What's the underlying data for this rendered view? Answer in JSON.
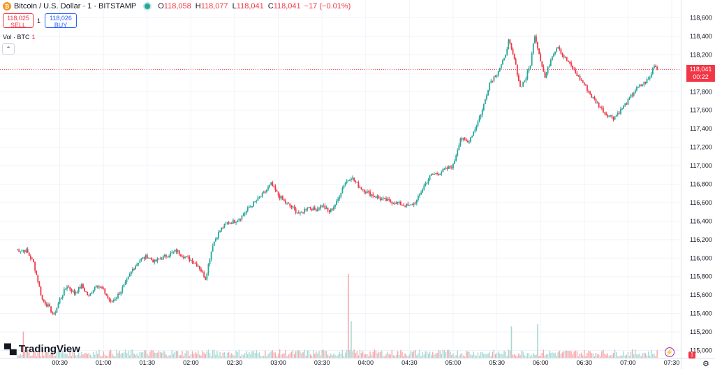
{
  "header": {
    "symbol": "Bitcoin / U.S. Dollar · 1 · BITSTAMP",
    "logo_glyph": "₿",
    "o_label": "O",
    "o_value": "118,058",
    "h_label": "H",
    "h_value": "118,077",
    "l_label": "L",
    "l_value": "118,041",
    "c_label": "C",
    "c_value": "118,041",
    "change": "−17 (−0.01%)"
  },
  "trade": {
    "sell_price": "118,025",
    "sell_label": "SELL",
    "spread": "1",
    "buy_price": "118,026",
    "buy_label": "BUY"
  },
  "volume_indicator": {
    "label": "Vol · BTC",
    "count": "1"
  },
  "logo": {
    "mark": "▀▄",
    "text": "TradingView"
  },
  "last_price": {
    "value": "118,041",
    "countdown": "00:22"
  },
  "bottom": {
    "badge": "1",
    "alert_glyph": "⚡",
    "gear_glyph": "⚙"
  },
  "colors": {
    "up": "#26a69a",
    "down": "#f23645",
    "vol_up": "#a8d8d3",
    "vol_down": "#f7a5ab",
    "grid": "#f0f3fa",
    "axis_text": "#131722"
  },
  "chart_data": {
    "type": "candlestick",
    "title": "",
    "xlabel": "",
    "ylabel": "",
    "ylim": [
      115000,
      118600
    ],
    "y_ticks": [
      "118,600",
      "118,400",
      "118,200",
      "118,000",
      "117,800",
      "117,600",
      "117,400",
      "117,200",
      "117,000",
      "116,800",
      "116,600",
      "116,400",
      "116,200",
      "116,000",
      "115,800",
      "115,600",
      "115,400",
      "115,200",
      "115,000"
    ],
    "x_ticks": [
      "00:30",
      "01:00",
      "01:30",
      "02:00",
      "02:30",
      "03:00",
      "03:30",
      "04:00",
      "04:30",
      "05:00",
      "05:30",
      "06:00",
      "06:30",
      "07:00",
      "07:30"
    ],
    "grid": true,
    "last_price": 118041,
    "close_path": [
      {
        "t": "00:00",
        "close": 116090
      },
      {
        "t": "00:07",
        "close": 116080
      },
      {
        "t": "00:12",
        "close": 115950
      },
      {
        "t": "00:18",
        "close": 115550
      },
      {
        "t": "00:22",
        "close": 115480
      },
      {
        "t": "00:26",
        "close": 115380
      },
      {
        "t": "00:30",
        "close": 115550
      },
      {
        "t": "00:35",
        "close": 115700
      },
      {
        "t": "00:40",
        "close": 115620
      },
      {
        "t": "00:45",
        "close": 115700
      },
      {
        "t": "00:50",
        "close": 115580
      },
      {
        "t": "00:55",
        "close": 115720
      },
      {
        "t": "01:00",
        "close": 115650
      },
      {
        "t": "01:05",
        "close": 115520
      },
      {
        "t": "01:10",
        "close": 115600
      },
      {
        "t": "01:15",
        "close": 115720
      },
      {
        "t": "01:20",
        "close": 115880
      },
      {
        "t": "01:25",
        "close": 115980
      },
      {
        "t": "01:30",
        "close": 116020
      },
      {
        "t": "01:35",
        "close": 115960
      },
      {
        "t": "01:40",
        "close": 116000
      },
      {
        "t": "01:45",
        "close": 116040
      },
      {
        "t": "01:50",
        "close": 116080
      },
      {
        "t": "01:55",
        "close": 116020
      },
      {
        "t": "02:00",
        "close": 115980
      },
      {
        "t": "02:05",
        "close": 115920
      },
      {
        "t": "02:10",
        "close": 115780
      },
      {
        "t": "02:15",
        "close": 116150
      },
      {
        "t": "02:20",
        "close": 116300
      },
      {
        "t": "02:25",
        "close": 116380
      },
      {
        "t": "02:30",
        "close": 116400
      },
      {
        "t": "02:35",
        "close": 116450
      },
      {
        "t": "02:40",
        "close": 116550
      },
      {
        "t": "02:45",
        "close": 116620
      },
      {
        "t": "02:50",
        "close": 116700
      },
      {
        "t": "02:55",
        "close": 116800
      },
      {
        "t": "03:00",
        "close": 116680
      },
      {
        "t": "03:05",
        "close": 116600
      },
      {
        "t": "03:10",
        "close": 116540
      },
      {
        "t": "03:15",
        "close": 116470
      },
      {
        "t": "03:20",
        "close": 116560
      },
      {
        "t": "03:25",
        "close": 116520
      },
      {
        "t": "03:30",
        "close": 116570
      },
      {
        "t": "03:35",
        "close": 116500
      },
      {
        "t": "03:40",
        "close": 116600
      },
      {
        "t": "03:45",
        "close": 116800
      },
      {
        "t": "03:50",
        "close": 116880
      },
      {
        "t": "03:55",
        "close": 116780
      },
      {
        "t": "04:00",
        "close": 116720
      },
      {
        "t": "04:05",
        "close": 116680
      },
      {
        "t": "04:10",
        "close": 116640
      },
      {
        "t": "04:15",
        "close": 116620
      },
      {
        "t": "04:20",
        "close": 116600
      },
      {
        "t": "04:25",
        "close": 116580
      },
      {
        "t": "04:30",
        "close": 116560
      },
      {
        "t": "04:35",
        "close": 116620
      },
      {
        "t": "04:40",
        "close": 116780
      },
      {
        "t": "04:45",
        "close": 116900
      },
      {
        "t": "04:50",
        "close": 116920
      },
      {
        "t": "04:55",
        "close": 116960
      },
      {
        "t": "05:00",
        "close": 117000
      },
      {
        "t": "05:05",
        "close": 117300
      },
      {
        "t": "05:10",
        "close": 117250
      },
      {
        "t": "05:15",
        "close": 117400
      },
      {
        "t": "05:20",
        "close": 117600
      },
      {
        "t": "05:25",
        "close": 117900
      },
      {
        "t": "05:30",
        "close": 118000
      },
      {
        "t": "05:35",
        "close": 118150
      },
      {
        "t": "05:38",
        "close": 118350
      },
      {
        "t": "05:42",
        "close": 118150
      },
      {
        "t": "05:46",
        "close": 117850
      },
      {
        "t": "05:50",
        "close": 117950
      },
      {
        "t": "05:53",
        "close": 118100
      },
      {
        "t": "05:56",
        "close": 118420
      },
      {
        "t": "06:00",
        "close": 118150
      },
      {
        "t": "06:03",
        "close": 117950
      },
      {
        "t": "06:08",
        "close": 118200
      },
      {
        "t": "06:12",
        "close": 118300
      },
      {
        "t": "06:15",
        "close": 118200
      },
      {
        "t": "06:20",
        "close": 118100
      },
      {
        "t": "06:25",
        "close": 117980
      },
      {
        "t": "06:30",
        "close": 117880
      },
      {
        "t": "06:35",
        "close": 117750
      },
      {
        "t": "06:40",
        "close": 117650
      },
      {
        "t": "06:45",
        "close": 117560
      },
      {
        "t": "06:50",
        "close": 117520
      },
      {
        "t": "06:55",
        "close": 117600
      },
      {
        "t": "07:00",
        "close": 117700
      },
      {
        "t": "07:05",
        "close": 117820
      },
      {
        "t": "07:10",
        "close": 117880
      },
      {
        "t": "07:15",
        "close": 117950
      },
      {
        "t": "07:18",
        "close": 118100
      },
      {
        "t": "07:20",
        "close": 118041
      }
    ],
    "volume": {
      "spikes": [
        {
          "t": "03:48",
          "value": 0.8,
          "direction": "down"
        },
        {
          "t": "03:50",
          "value": 0.35,
          "direction": "up"
        },
        {
          "t": "05:58",
          "value": 0.32,
          "direction": "up"
        },
        {
          "t": "05:40",
          "value": 0.3,
          "direction": "up"
        },
        {
          "t": "00:05",
          "value": 0.25,
          "direction": "down"
        }
      ]
    }
  }
}
